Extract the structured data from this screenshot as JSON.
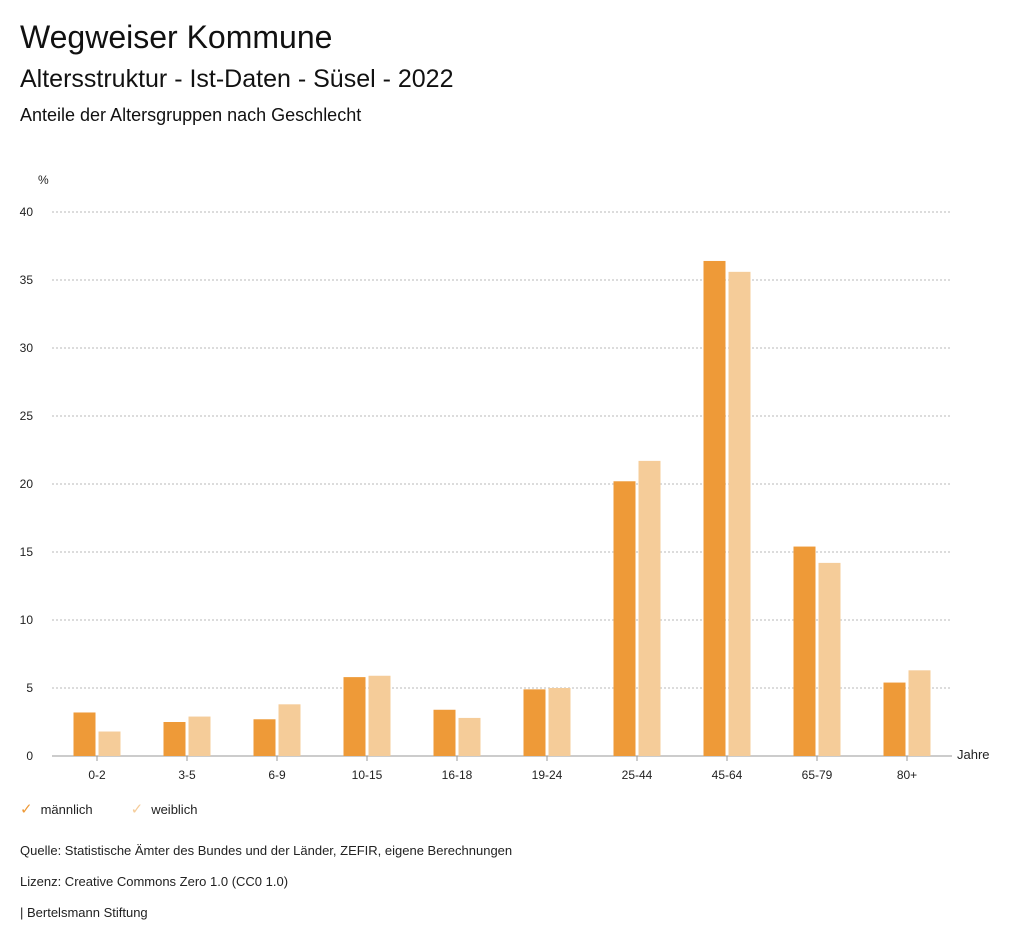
{
  "header": {
    "title": "Wegweiser Kommune",
    "subtitle": "Altersstruktur - Ist-Daten - Süsel - 2022",
    "chart_title": "Anteile der Altersgruppen nach Geschlecht"
  },
  "colors": {
    "male": "#ee9a38",
    "female": "#f5cc99",
    "grid": "#b8b8b8",
    "axis": "#999999",
    "text": "#222222"
  },
  "chart_data": {
    "type": "bar",
    "title": "Anteile der Altersgruppen nach Geschlecht",
    "xlabel": "Jahre",
    "ylabel": "%",
    "ylim": [
      0,
      40
    ],
    "yticks": [
      0,
      5,
      10,
      15,
      20,
      25,
      30,
      35,
      40
    ],
    "grid": true,
    "categories": [
      "0-2",
      "3-5",
      "6-9",
      "10-15",
      "16-18",
      "19-24",
      "25-44",
      "45-64",
      "65-79",
      "80+"
    ],
    "series": [
      {
        "name": "männlich",
        "values": [
          3.2,
          2.5,
          2.7,
          5.8,
          3.4,
          4.9,
          20.2,
          36.4,
          15.4,
          5.4
        ]
      },
      {
        "name": "weiblich",
        "values": [
          1.8,
          2.9,
          3.8,
          5.9,
          2.8,
          5.0,
          21.7,
          35.6,
          14.2,
          6.3
        ]
      }
    ]
  },
  "legend": {
    "male_label": "männlich",
    "female_label": "weiblich",
    "check_glyph": "✓"
  },
  "footer": {
    "source": "Quelle: Statistische Ämter des Bundes und der Länder, ZEFIR, eigene Berechnungen",
    "license": "Lizenz: Creative Commons Zero 1.0 (CC0 1.0)",
    "publisher": "| Bertelsmann Stiftung"
  }
}
